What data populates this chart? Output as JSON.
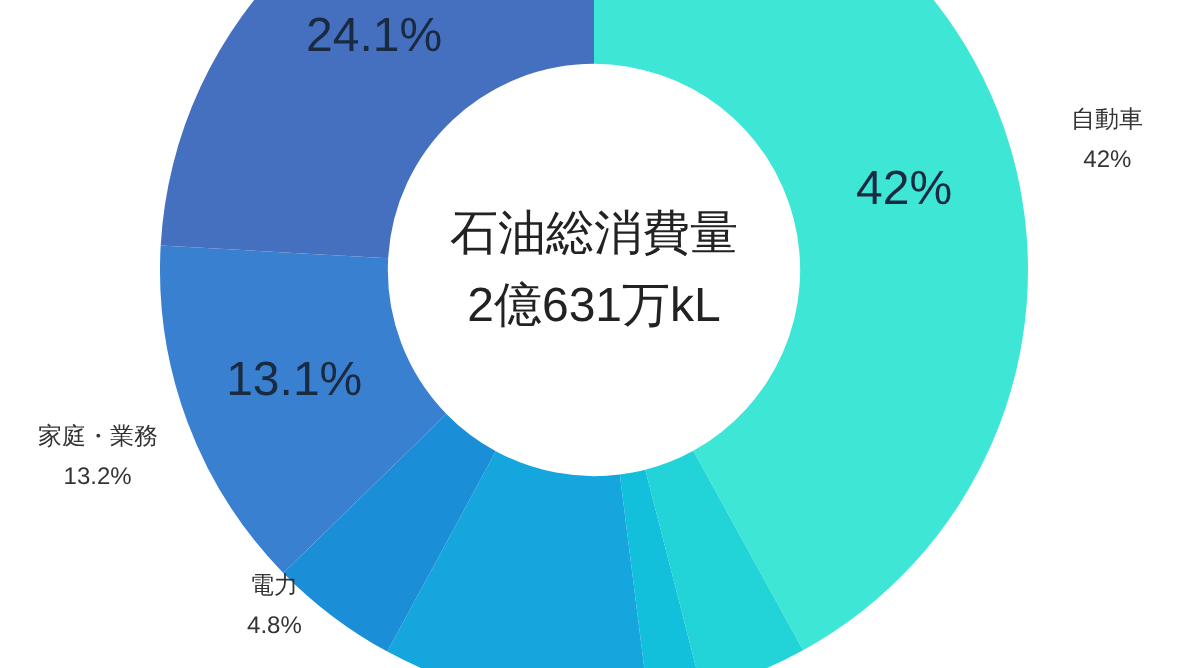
{
  "chart_data": {
    "type": "donut",
    "title": "石油総消費量",
    "subtitle": "2億631万kL",
    "categories": [
      "自動車",
      null,
      null,
      null,
      "電力",
      "家庭・業務",
      null
    ],
    "values": [
      42,
      4,
      2,
      9.9,
      4.8,
      13.2,
      24.1
    ],
    "colors": [
      "#3ee6d6",
      "#22d4d8",
      "#12c0dc",
      "#14a6dc",
      "#1a8ed6",
      "#3a80d0",
      "#4570c0"
    ],
    "value_labels": [
      "42%",
      null,
      null,
      null,
      "4.8%",
      "13.2%",
      null
    ],
    "annotations": [
      {
        "text": "42%",
        "x": "自動車"
      },
      {
        "text": "13.1%",
        "x": "家庭・業務"
      },
      "24.1%"
    ]
  }
}
